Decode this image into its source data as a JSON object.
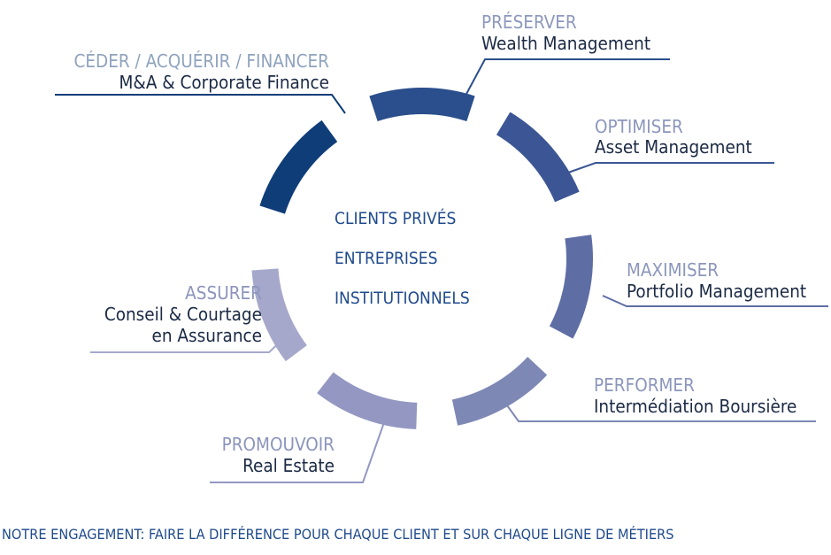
{
  "colors": {
    "text_dark": "#1b2a44",
    "center_text": "#1f4a8c",
    "footer_text": "#1f4a8c"
  },
  "segments": [
    {
      "id": "ma",
      "verb": "CÉDER / ACQUÉRIR / FINANCER",
      "name": "M&A & Corporate Finance",
      "color": "#0f3d78",
      "verb_color": "#8fa3bd"
    },
    {
      "id": "wealth",
      "verb": "PRÉSERVER",
      "name": "Wealth Management",
      "color": "#2a4f8c",
      "verb_color": "#8c98bc"
    },
    {
      "id": "asset",
      "verb": "OPTIMISER",
      "name": "Asset Management",
      "color": "#3c5695",
      "verb_color": "#8c96bc"
    },
    {
      "id": "portfolio",
      "verb": "MAXIMISER",
      "name": "Portfolio Management",
      "color": "#5e6ea5",
      "verb_color": "#8c96bc"
    },
    {
      "id": "brokerage",
      "verb": "PERFORMER",
      "name": "Intermédiation Boursière",
      "color": "#7e88b5",
      "verb_color": "#8c96bc"
    },
    {
      "id": "realestate",
      "verb": "PROMOUVOIR",
      "name": "Real Estate",
      "color": "#9397c2",
      "verb_color": "#8c94bc"
    },
    {
      "id": "insurance",
      "verb": "ASSURER",
      "name_line1": "Conseil & Courtage",
      "name_line2": "en Assurance",
      "color": "#a6a8cb",
      "verb_color": "#8c94bc"
    }
  ],
  "center": {
    "line1": "CLIENTS PRIVÉS",
    "line2": "ENTREPRISES",
    "line3": "INSTITUTIONNELS"
  },
  "footer": "NOTRE ENGAGEMENT: FAIRE LA DIFFÉRENCE POUR CHAQUE CLIENT ET SUR CHAQUE LIGNE DE MÉTIERS"
}
